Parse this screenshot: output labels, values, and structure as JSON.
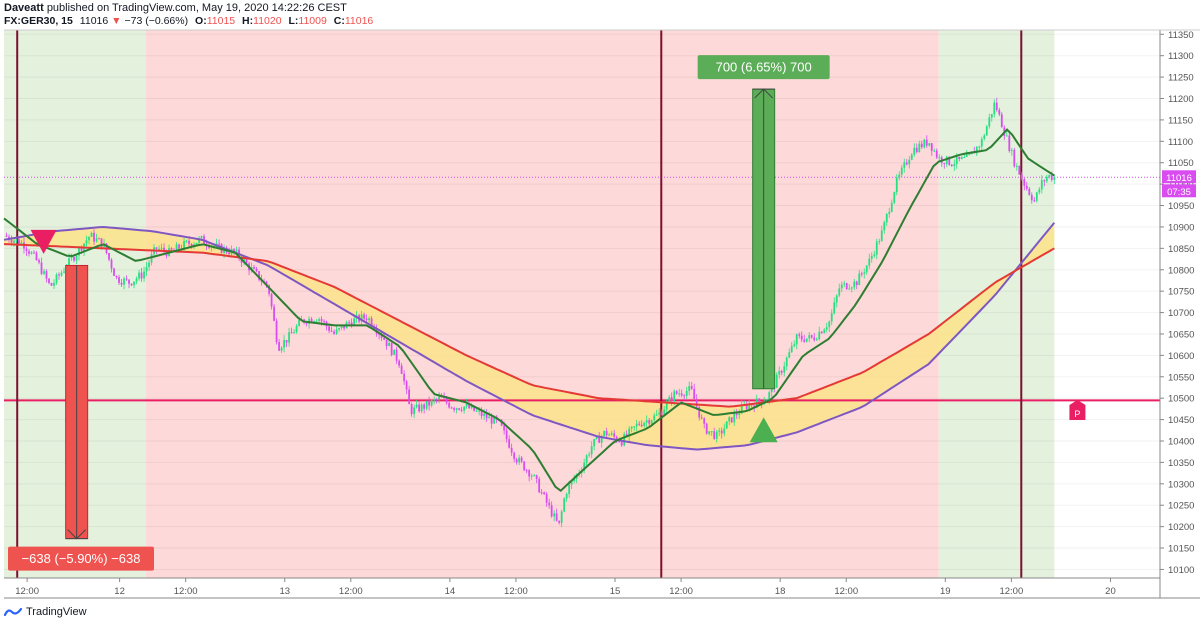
{
  "header": {
    "author": "Daveatt",
    "published": "published on TradingView.com, May 19, 2020 14:22:26 CEST",
    "symbol": "FX:GER30, 15",
    "last": "11016",
    "change_arrow": "▼",
    "change": "−73 (−0.66%)",
    "o_label": "O:",
    "o": "11015",
    "h_label": "H:",
    "h": "11020",
    "l_label": "L:",
    "l": "11009",
    "c_label": "C:",
    "c": "11016"
  },
  "footer": {
    "brand": "TradingView",
    "logo_icon": "tradingview-logo-icon"
  },
  "colors": {
    "bull": "#26e07f",
    "bear": "#d94df0",
    "green_line": "#2e7d32",
    "red_line": "#e53935",
    "purple_line": "#7e57c2",
    "cloud": "#fce38a",
    "bg_green": "#e3f1dd",
    "bg_red": "#fdd9d9",
    "level": "#e91e63",
    "divider": "#7b1030",
    "short_box": "#ef5350",
    "long_box": "#5cad58"
  },
  "chart_data": {
    "type": "candlestick",
    "title": "",
    "xlabel": "",
    "ylabel": "",
    "ylim": [
      10080,
      11360
    ],
    "y_ticks": [
      "11350",
      "11300",
      "11250",
      "11200",
      "11150",
      "11100",
      "11050",
      "11000",
      "10950",
      "10900",
      "10850",
      "10800",
      "10750",
      "10700",
      "10650",
      "10600",
      "10550",
      "10500",
      "10450",
      "10400",
      "10350",
      "10300",
      "10250",
      "10200",
      "10150",
      "10100"
    ],
    "x_ticks": [
      {
        "label": "12:00",
        "t": 0.7
      },
      {
        "label": "12",
        "t": 3.5
      },
      {
        "label": "12:00",
        "t": 5.5
      },
      {
        "label": "13",
        "t": 8.5
      },
      {
        "label": "12:00",
        "t": 10.5
      },
      {
        "label": "14",
        "t": 13.5
      },
      {
        "label": "12:00",
        "t": 15.5
      },
      {
        "label": "15",
        "t": 18.5
      },
      {
        "label": "12:00",
        "t": 20.5
      },
      {
        "label": "18",
        "t": 23.5
      },
      {
        "label": "12:00",
        "t": 25.5
      },
      {
        "label": "19",
        "t": 28.5
      },
      {
        "label": "12:00",
        "t": 30.5
      },
      {
        "label": "20",
        "t": 33.5
      }
    ],
    "x_range": [
      0,
      35
    ],
    "price_path": [
      [
        0,
        10880
      ],
      [
        0.6,
        10860
      ],
      [
        1.0,
        10820
      ],
      [
        1.4,
        10760
      ],
      [
        1.8,
        10800
      ],
      [
        2.2,
        10840
      ],
      [
        2.6,
        10880
      ],
      [
        3.0,
        10860
      ],
      [
        3.4,
        10780
      ],
      [
        3.8,
        10770
      ],
      [
        4.2,
        10790
      ],
      [
        4.6,
        10850
      ],
      [
        5.0,
        10840
      ],
      [
        5.5,
        10860
      ],
      [
        6.0,
        10870
      ],
      [
        6.5,
        10850
      ],
      [
        7.0,
        10840
      ],
      [
        7.5,
        10800
      ],
      [
        8.0,
        10760
      ],
      [
        8.3,
        10620
      ],
      [
        8.6,
        10640
      ],
      [
        9.0,
        10680
      ],
      [
        9.5,
        10690
      ],
      [
        10.0,
        10650
      ],
      [
        10.5,
        10680
      ],
      [
        11.0,
        10690
      ],
      [
        11.5,
        10640
      ],
      [
        12.0,
        10580
      ],
      [
        12.3,
        10470
      ],
      [
        12.7,
        10480
      ],
      [
        13.2,
        10500
      ],
      [
        13.6,
        10480
      ],
      [
        14.0,
        10480
      ],
      [
        14.5,
        10460
      ],
      [
        15.0,
        10440
      ],
      [
        15.5,
        10360
      ],
      [
        16.0,
        10320
      ],
      [
        16.4,
        10260
      ],
      [
        16.8,
        10200
      ],
      [
        17.0,
        10280
      ],
      [
        17.5,
        10340
      ],
      [
        17.8,
        10390
      ],
      [
        18.2,
        10420
      ],
      [
        18.7,
        10400
      ],
      [
        19.2,
        10440
      ],
      [
        19.8,
        10460
      ],
      [
        20.3,
        10510
      ],
      [
        20.8,
        10520
      ],
      [
        21.2,
        10430
      ],
      [
        21.6,
        10410
      ],
      [
        22.0,
        10450
      ],
      [
        22.4,
        10480
      ],
      [
        22.8,
        10490
      ],
      [
        23.1,
        10500
      ],
      [
        23.5,
        10560
      ],
      [
        24.0,
        10640
      ],
      [
        24.5,
        10640
      ],
      [
        25.0,
        10680
      ],
      [
        25.3,
        10760
      ],
      [
        25.8,
        10770
      ],
      [
        26.2,
        10820
      ],
      [
        26.6,
        10890
      ],
      [
        27.0,
        11000
      ],
      [
        27.5,
        11080
      ],
      [
        28.0,
        11100
      ],
      [
        28.3,
        11060
      ],
      [
        28.7,
        11050
      ],
      [
        29.2,
        11060
      ],
      [
        29.6,
        11100
      ],
      [
        30.0,
        11190
      ],
      [
        30.3,
        11120
      ],
      [
        30.6,
        11050
      ],
      [
        30.9,
        11000
      ],
      [
        31.2,
        10960
      ],
      [
        31.4,
        11000
      ],
      [
        31.6,
        11020
      ],
      [
        31.8,
        11016
      ]
    ],
    "series": [
      {
        "name": "",
        "role": "fast_ma",
        "points": [
          [
            0,
            10920
          ],
          [
            1,
            10860
          ],
          [
            2,
            10830
          ],
          [
            3,
            10860
          ],
          [
            4,
            10820
          ],
          [
            5,
            10840
          ],
          [
            6,
            10860
          ],
          [
            7,
            10840
          ],
          [
            8,
            10760
          ],
          [
            9,
            10680
          ],
          [
            10,
            10670
          ],
          [
            11,
            10670
          ],
          [
            12,
            10620
          ],
          [
            13,
            10510
          ],
          [
            14,
            10490
          ],
          [
            15,
            10450
          ],
          [
            16,
            10380
          ],
          [
            16.8,
            10280
          ],
          [
            17.5,
            10330
          ],
          [
            18.5,
            10400
          ],
          [
            19.5,
            10430
          ],
          [
            20.5,
            10490
          ],
          [
            21.5,
            10460
          ],
          [
            22.5,
            10470
          ],
          [
            23.3,
            10500
          ],
          [
            24.2,
            10600
          ],
          [
            25.0,
            10640
          ],
          [
            25.8,
            10720
          ],
          [
            26.6,
            10820
          ],
          [
            27.4,
            10940
          ],
          [
            28.2,
            11050
          ],
          [
            29.0,
            11070
          ],
          [
            29.8,
            11080
          ],
          [
            30.4,
            11130
          ],
          [
            31.0,
            11060
          ],
          [
            31.8,
            11020
          ]
        ]
      },
      {
        "name": "",
        "role": "mid_ma",
        "points": [
          [
            0,
            10860
          ],
          [
            3,
            10850
          ],
          [
            6,
            10840
          ],
          [
            8,
            10820
          ],
          [
            10,
            10760
          ],
          [
            12,
            10680
          ],
          [
            14,
            10600
          ],
          [
            16,
            10530
          ],
          [
            18,
            10500
          ],
          [
            20,
            10490
          ],
          [
            22,
            10480
          ],
          [
            24,
            10500
          ],
          [
            26,
            10560
          ],
          [
            28,
            10650
          ],
          [
            30,
            10770
          ],
          [
            31.8,
            10850
          ]
        ]
      },
      {
        "name": "",
        "role": "slow_ma",
        "points": [
          [
            0,
            10870
          ],
          [
            1.5,
            10890
          ],
          [
            3,
            10900
          ],
          [
            4.5,
            10890
          ],
          [
            6,
            10870
          ],
          [
            8,
            10810
          ],
          [
            10,
            10720
          ],
          [
            12,
            10630
          ],
          [
            14,
            10540
          ],
          [
            16,
            10460
          ],
          [
            18,
            10410
          ],
          [
            19.5,
            10390
          ],
          [
            21,
            10380
          ],
          [
            22.5,
            10390
          ],
          [
            24,
            10420
          ],
          [
            26,
            10480
          ],
          [
            28,
            10580
          ],
          [
            30,
            10740
          ],
          [
            31.8,
            10910
          ]
        ]
      }
    ],
    "background_bands": [
      {
        "from": 0,
        "to": 4.3,
        "color": "green"
      },
      {
        "from": 4.3,
        "to": 28.3,
        "color": "red"
      },
      {
        "from": 28.3,
        "to": 31.8,
        "color": "green"
      }
    ],
    "vertical_lines": [
      0.4,
      19.9,
      30.8
    ],
    "horizontal_level": 10495,
    "current_price": {
      "value": 11016,
      "label": "11016",
      "time_label": "07:35"
    },
    "markers": [
      {
        "type": "sell-triangle",
        "x": 1.2,
        "y": 10865
      },
      {
        "type": "buy-triangle",
        "x": 23.0,
        "y": 10425
      }
    ],
    "measure_boxes": [
      {
        "name": "short-measure",
        "x": 2.2,
        "y_from": 10810,
        "y_to": 10172,
        "label": "−638 (−5.90%) −638"
      },
      {
        "name": "long-measure",
        "x": 23.0,
        "y_from": 10522,
        "y_to": 11222,
        "label": "700 (6.65%) 700"
      }
    ],
    "pin": {
      "label": "P",
      "x": 32.5,
      "y": 10470
    }
  }
}
